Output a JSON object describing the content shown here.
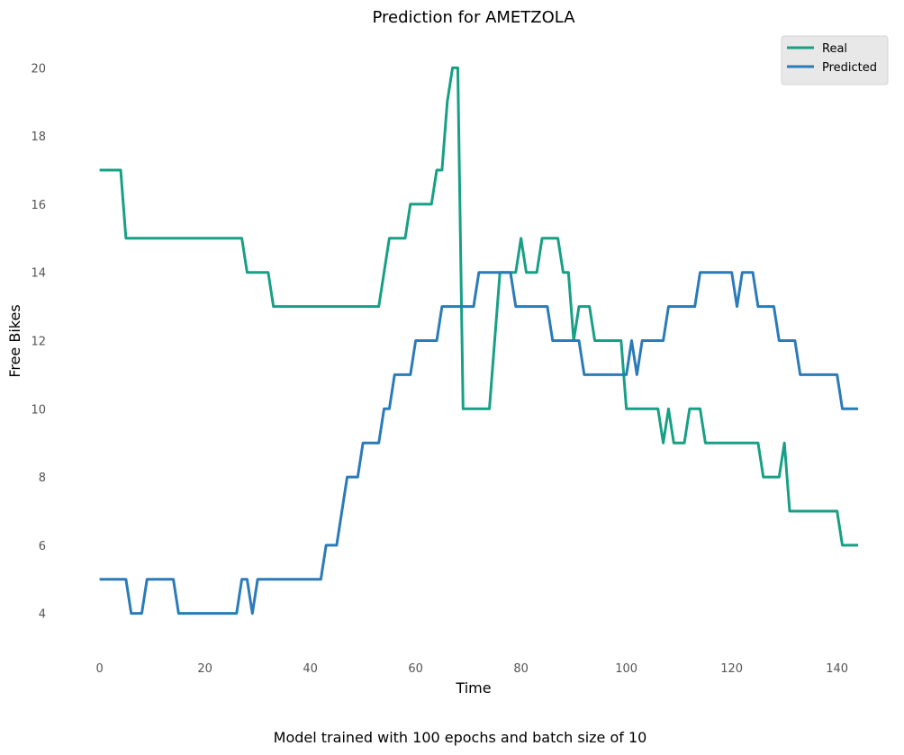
{
  "chart_data": {
    "type": "line",
    "title": "Prediction for AMETZOLA",
    "xlabel": "Time",
    "ylabel": "Free Bikes",
    "caption": "Model trained with 100 epochs and batch size of 10",
    "xlim": [
      -2.5,
      144.5
    ],
    "ylim": [
      3.2,
      20.8
    ],
    "x_ticks": [
      0,
      20,
      40,
      60,
      80,
      100,
      120,
      140
    ],
    "y_ticks": [
      4,
      6,
      8,
      10,
      12,
      14,
      16,
      18,
      20
    ],
    "grid": false,
    "legend_position": "top-right",
    "series": [
      {
        "name": "Real",
        "color": "#17a085",
        "values": [
          17,
          17,
          17,
          17,
          17,
          15,
          15,
          15,
          15,
          15,
          15,
          15,
          15,
          15,
          15,
          15,
          15,
          15,
          15,
          15,
          15,
          15,
          15,
          15,
          15,
          15,
          15,
          15,
          14,
          14,
          14,
          14,
          14,
          13,
          13,
          13,
          13,
          13,
          13,
          13,
          13,
          13,
          13,
          13,
          13,
          13,
          13,
          13,
          13,
          13,
          13,
          13,
          13,
          13,
          14,
          15,
          15,
          15,
          15,
          16,
          16,
          16,
          16,
          16,
          17,
          17,
          19,
          20,
          20,
          10,
          10,
          10,
          10,
          10,
          10,
          12,
          14,
          14,
          14,
          14,
          15,
          14,
          14,
          14,
          15,
          15,
          15,
          15,
          14,
          14,
          12,
          13,
          13,
          13,
          12,
          12,
          12,
          12,
          12,
          12,
          10,
          10,
          10,
          10,
          10,
          10,
          10,
          9,
          10,
          9,
          9,
          9,
          10,
          10,
          10,
          9,
          9,
          9,
          9,
          9,
          9,
          9,
          9,
          9,
          9,
          9,
          8,
          8,
          8,
          8,
          9,
          7,
          7,
          7,
          7,
          7,
          7,
          7,
          7,
          7,
          7,
          6,
          6,
          6,
          6
        ]
      },
      {
        "name": "Predicted",
        "color": "#2b7bb9",
        "values": [
          5,
          5,
          5,
          5,
          5,
          5,
          4,
          4,
          4,
          5,
          5,
          5,
          5,
          5,
          5,
          4,
          4,
          4,
          4,
          4,
          4,
          4,
          4,
          4,
          4,
          4,
          4,
          5,
          5,
          4,
          5,
          5,
          5,
          5,
          5,
          5,
          5,
          5,
          5,
          5,
          5,
          5,
          5,
          6,
          6,
          6,
          7,
          8,
          8,
          8,
          9,
          9,
          9,
          9,
          10,
          10,
          11,
          11,
          11,
          11,
          12,
          12,
          12,
          12,
          12,
          13,
          13,
          13,
          13,
          13,
          13,
          13,
          14,
          14,
          14,
          14,
          14,
          14,
          14,
          13,
          13,
          13,
          13,
          13,
          13,
          13,
          12,
          12,
          12,
          12,
          12,
          12,
          11,
          11,
          11,
          11,
          11,
          11,
          11,
          11,
          11,
          12,
          11,
          12,
          12,
          12,
          12,
          12,
          13,
          13,
          13,
          13,
          13,
          13,
          14,
          14,
          14,
          14,
          14,
          14,
          14,
          13,
          14,
          14,
          14,
          13,
          13,
          13,
          13,
          12,
          12,
          12,
          12,
          11,
          11,
          11,
          11,
          11,
          11,
          11,
          11,
          10,
          10,
          10,
          10
        ]
      }
    ]
  }
}
